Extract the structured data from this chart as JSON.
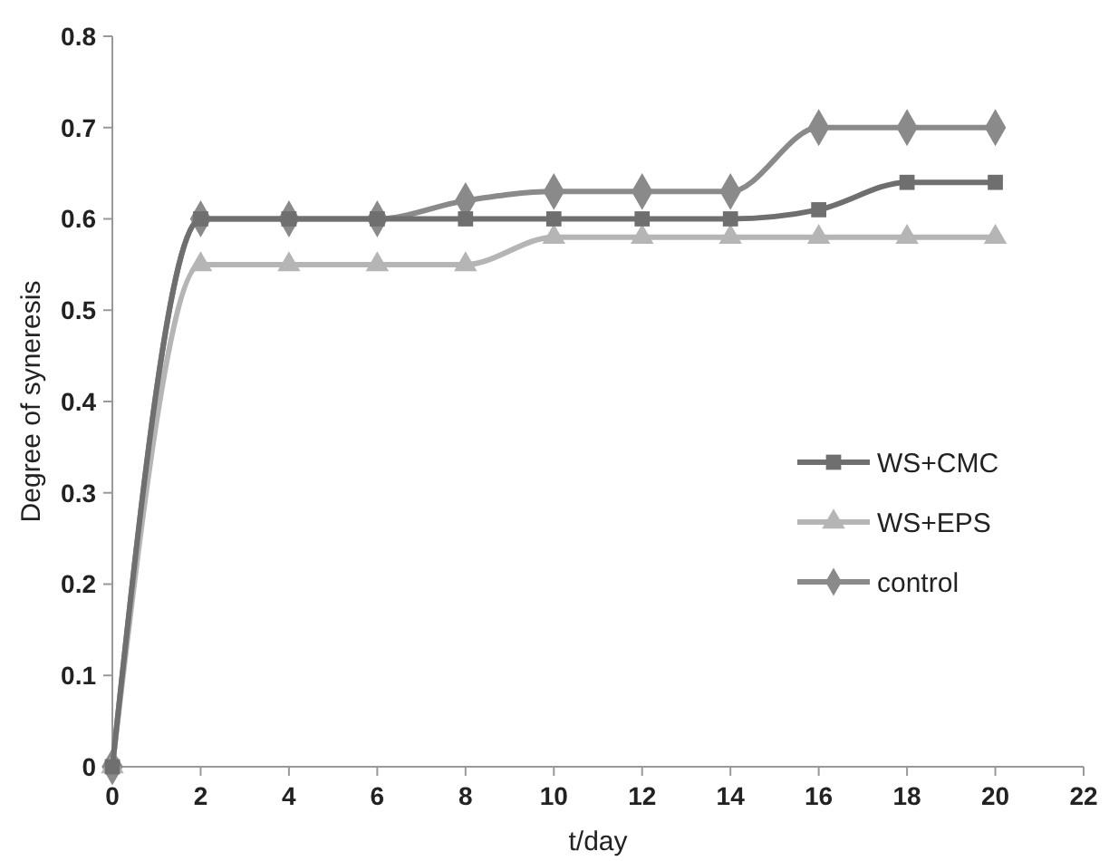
{
  "chart_data": {
    "type": "line",
    "xlabel": "t/day",
    "ylabel": "Degree of syneresis",
    "x": [
      0,
      2,
      4,
      6,
      8,
      10,
      12,
      14,
      16,
      18,
      20
    ],
    "xlim": [
      0,
      22
    ],
    "xticks": [
      0,
      2,
      4,
      6,
      8,
      10,
      12,
      14,
      16,
      18,
      20,
      22
    ],
    "ylim": [
      0,
      0.8
    ],
    "yticks": [
      0,
      0.1,
      0.2,
      0.3,
      0.4,
      0.5,
      0.6,
      0.7,
      0.8
    ],
    "grid": false,
    "legend": "right",
    "series": [
      {
        "name": "WS+CMC",
        "color": "#6f6f6f",
        "marker": "square",
        "values": [
          0,
          0.6,
          0.6,
          0.6,
          0.6,
          0.6,
          0.6,
          0.6,
          0.61,
          0.64,
          0.64
        ]
      },
      {
        "name": "WS+EPS",
        "color": "#b5b5b5",
        "marker": "triangle",
        "values": [
          0,
          0.55,
          0.55,
          0.55,
          0.55,
          0.58,
          0.58,
          0.58,
          0.58,
          0.58,
          0.58
        ]
      },
      {
        "name": "control",
        "color": "#8a8a8a",
        "marker": "diamond",
        "values": [
          0,
          0.6,
          0.6,
          0.6,
          0.62,
          0.63,
          0.63,
          0.63,
          0.7,
          0.7,
          0.7
        ]
      }
    ]
  }
}
